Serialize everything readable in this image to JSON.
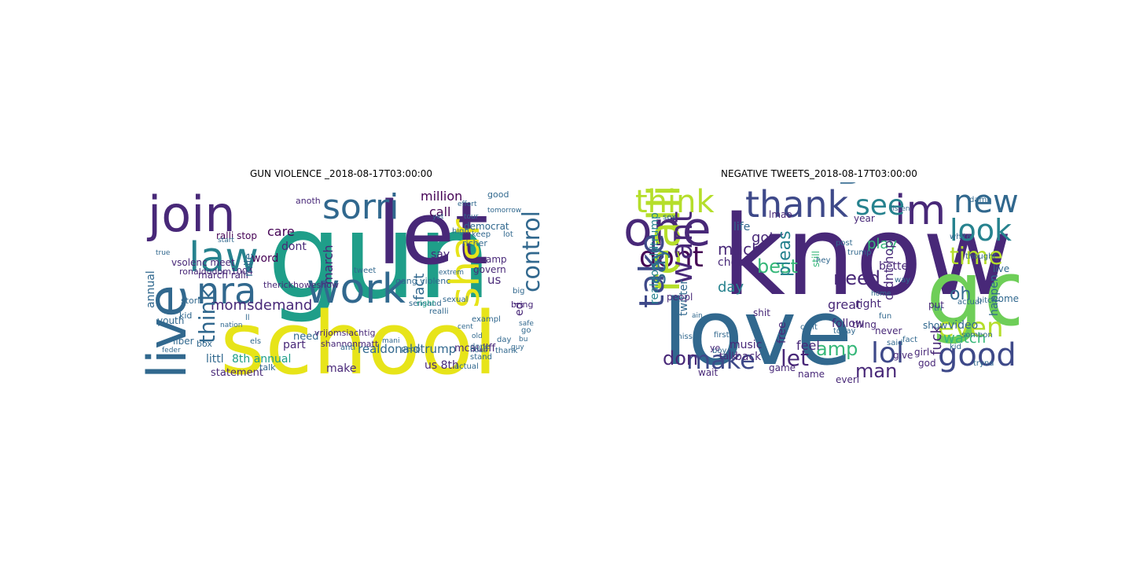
{
  "colors": {
    "purple": "#440154",
    "indigo": "#482878",
    "blue": "#3e4989",
    "slate": "#31688e",
    "teal": "#26828e",
    "sea": "#1f9e89",
    "green": "#35b779",
    "lime": "#6ece58",
    "yellowgreen": "#b5de2b",
    "yellow": "#e7e419"
  },
  "panels": [
    {
      "title": "GUN VIOLENCE _2018-08-17T03:00:00",
      "words": [
        "gun",
        "school",
        "let",
        "join",
        "live",
        "law",
        "nra",
        "work",
        "sorri",
        "shar",
        "control",
        "momsdemand",
        "think",
        "million",
        "realdonaldtrump",
        "8th annual",
        "littl",
        "march",
        "care",
        "dont",
        "word",
        "ralli stop",
        "call",
        "fact",
        "us",
        "say",
        "part",
        "need",
        "make",
        "mcauliff",
        "us 8th",
        "democrat",
        "amp",
        "govern",
        "annual",
        "march ralli",
        "vsolenc meet",
        "ronaldodom1004",
        "therickhoweshow",
        "vrijomsiachtig",
        "shannonmatt",
        "tweet",
        "gang violenc",
        "sensand",
        "richer",
        "keep",
        "good",
        "high",
        "youth",
        "stori",
        "mile",
        "statement",
        "liber",
        "box",
        "kid",
        "anoth",
        "talk",
        "ed",
        "bring",
        "actual",
        "thank",
        "day",
        "peopl",
        "stand",
        "done",
        "anti",
        "els",
        "ll",
        "go",
        "lot",
        "big",
        "exampl",
        "sexual",
        "realli",
        "right",
        "start",
        "effort",
        "tomorrow",
        "true",
        "tour",
        "extrem",
        "mani",
        "feder",
        "hous",
        "bu",
        "cent",
        "old",
        "safe",
        "guy",
        "yet",
        "nation"
      ]
    },
    {
      "title": "NEGATIVE TWEETS_2018-08-17T03:00:00",
      "words": [
        "know",
        "love",
        "go",
        "one",
        "thank",
        "im",
        "new",
        "think",
        "see",
        "us",
        "look",
        "dont",
        "time",
        "realli",
        "want",
        "best",
        "need",
        "good",
        "lol",
        "make",
        "let",
        "amp",
        "don",
        "take",
        "say",
        "even",
        "much",
        "day",
        "pleas",
        "got",
        "oh",
        "watch",
        "play",
        "fuck",
        "man",
        "year",
        "realdonaldtrump",
        "video",
        "music",
        "back",
        "game",
        "thing",
        "right",
        "way",
        "great",
        "put",
        "shit",
        "twitter",
        "peopl",
        "check",
        "talk",
        "better",
        "life",
        "happen",
        "come",
        "feel",
        "never",
        "big",
        "free",
        "follow",
        "wait",
        "name",
        "everi",
        "girl",
        "god",
        "give",
        "fact",
        "fun",
        "show",
        "actual",
        "tri",
        "lmao",
        "didnt hope",
        "still",
        "live",
        "white",
        "bitch",
        "someon",
        "kid",
        "post",
        "trump",
        "miss",
        "sex",
        "said",
        "hey",
        "thought",
        "today",
        "boy",
        "first",
        "ye",
        "ain",
        "tryna",
        "cant",
        "damn",
        "listen",
        "home"
      ]
    }
  ]
}
